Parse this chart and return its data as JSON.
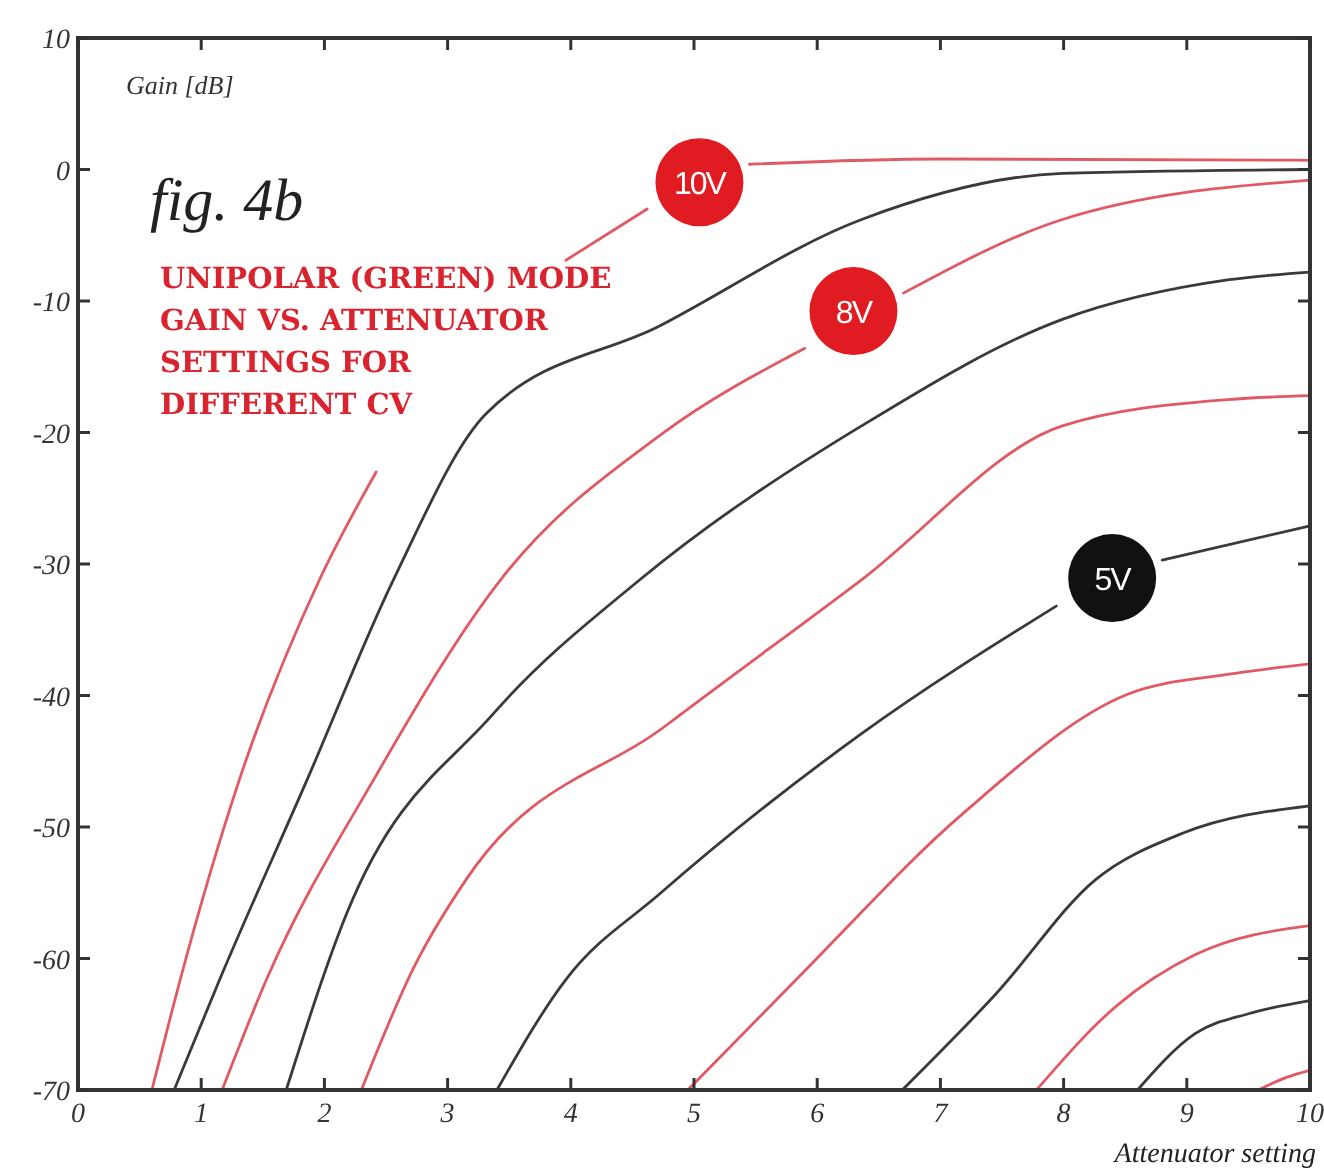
{
  "chart_data": {
    "type": "line",
    "title": "fig. 4b",
    "subtitle": "UNIPOLAR (GREEN) MODE\nGAIN VS. ATTENUATOR\nSETTINGS FOR\nDIFFERENT CV",
    "xlabel": "Attenuator setting",
    "ylabel": "Gain [dB]",
    "xlim": [
      0,
      10
    ],
    "xticks": [
      0,
      1,
      2,
      3,
      4,
      5,
      6,
      7,
      8,
      9,
      10
    ],
    "ylim": [
      -70,
      10
    ],
    "yticks": [
      -70,
      -60,
      -50,
      -40,
      -30,
      -20,
      -10,
      0,
      10
    ],
    "grid": false,
    "marker": "none",
    "line_style": "solid",
    "series": [
      {
        "color": "#e05a64",
        "x": [
          0.6,
          0.83,
          1.31,
          1.96,
          2.42,
          3.2,
          3.96,
          4.62,
          5.05,
          5.45,
          7,
          10
        ],
        "values": [
          -70,
          -61.6,
          -46.4,
          -31.2,
          -23,
          null,
          -6.9,
          -3,
          null,
          0.4,
          0.8,
          0.7
        ]
      },
      {
        "color": "#3a3a3a",
        "x": [
          0.78,
          1.15,
          1.86,
          2.56,
          3.31,
          4.72,
          6.36,
          7.99,
          10
        ],
        "values": [
          -70,
          -61.6,
          -46.4,
          -31.2,
          -18.6,
          -11.9,
          -3.8,
          -0.3,
          0
        ]
      },
      {
        "color": "#e05a64",
        "x": [
          1.17,
          1.53,
          2.4,
          3.43,
          4.74,
          5.9,
          6.3,
          6.7,
          7.99,
          10
        ],
        "values": [
          -70,
          -61.6,
          -46.4,
          -31.2,
          -20.1,
          -13.6,
          null,
          -9.4,
          -3.8,
          -0.8
        ]
      },
      {
        "color": "#3a3a3a",
        "x": [
          1.69,
          2.18,
          3.37,
          4.56,
          6.36,
          7.99,
          9.33,
          10
        ],
        "values": [
          -70,
          -56.6,
          -41.4,
          -31.2,
          -19.5,
          -11.4,
          -8.4,
          -7.8
        ]
      },
      {
        "color": "#e05a64",
        "x": [
          2.3,
          2.73,
          3.15,
          4.77,
          6.36,
          7.99,
          9.33,
          10
        ],
        "values": [
          -70,
          -60.6,
          -54,
          -42.3,
          -31.2,
          -19.5,
          -17.5,
          -17.2
        ]
      },
      {
        "color": "#3a3a3a",
        "x": [
          3.4,
          3.96,
          4.72,
          6.36,
          7.94,
          8.33,
          8.8,
          10
        ],
        "values": [
          -70,
          -61.6,
          -55.1,
          -42.9,
          -33.2,
          null,
          -29.7,
          -27.1
        ]
      },
      {
        "color": "#e05a64",
        "x": [
          4.95,
          5.83,
          7.18,
          8.52,
          9.33,
          10
        ],
        "values": [
          -70,
          -61.6,
          -49,
          -39.9,
          -38.4,
          -37.6
        ]
      },
      {
        "color": "#3a3a3a",
        "x": [
          6.69,
          7.45,
          8.26,
          8.96,
          10
        ],
        "values": [
          -70,
          -62.7,
          -54,
          -50.5,
          -48.4
        ]
      },
      {
        "color": "#e05a64",
        "x": [
          7.78,
          8.43,
          9.07,
          10
        ],
        "values": [
          -70,
          -63.6,
          -59.7,
          -57.5
        ]
      },
      {
        "color": "#3a3a3a",
        "x": [
          8.6,
          9.07,
          9.5,
          10
        ],
        "values": [
          -70,
          -65.7,
          -64.2,
          -63.2
        ]
      },
      {
        "color": "#e05a64",
        "x": [
          9.58,
          9.82,
          10
        ],
        "values": [
          -70,
          -69,
          -68.5
        ]
      }
    ],
    "annotations": [
      {
        "text": "10V",
        "x": 5.45,
        "y": 0.4
      },
      {
        "text": "8V",
        "x": 6.7,
        "y": -9.4
      },
      {
        "text": "5V",
        "x": 8.8,
        "y": -29.7
      }
    ]
  }
}
